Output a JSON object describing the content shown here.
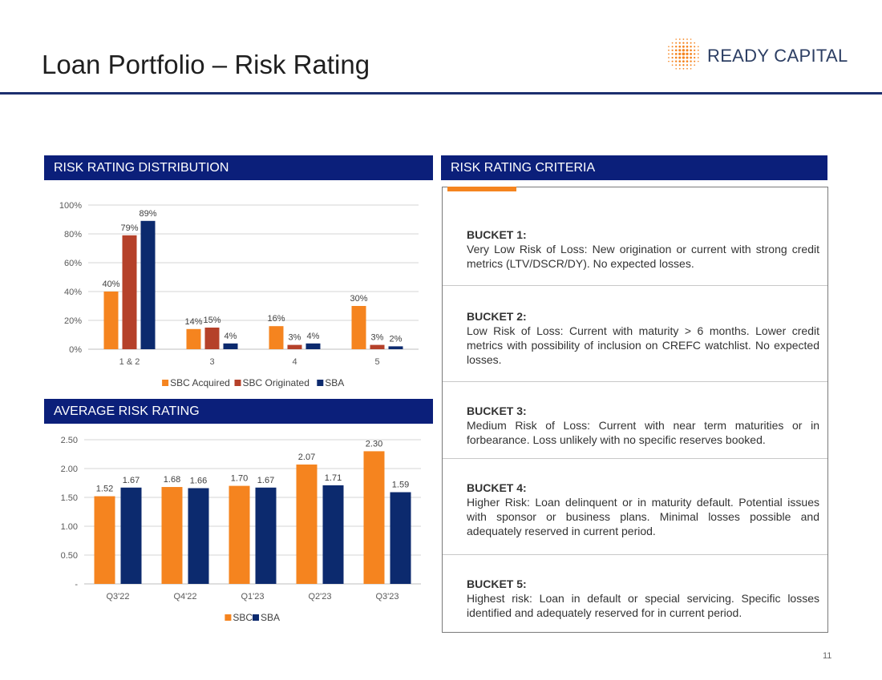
{
  "page": {
    "title": "Loan Portfolio – Risk Rating",
    "logo_text": "READY CAPITAL",
    "page_number": "11",
    "colors": {
      "navy": "#0b1f7a",
      "orange": "#f5841f",
      "rust": "#b5412a",
      "sba": "#0c2a6e"
    }
  },
  "sections": {
    "distribution_header": "RISK RATING DISTRIBUTION",
    "average_header": "AVERAGE RISK RATING",
    "criteria_header": "RISK RATING CRITERIA"
  },
  "criteria": [
    {
      "title": "BUCKET 1:",
      "description": "Very Low Risk of Loss: New origination or current with strong credit metrics (LTV/DSCR/DY). No expected losses."
    },
    {
      "title": "BUCKET 2:",
      "description": "Low Risk of Loss: Current with maturity > 6 months. Lower credit metrics with possibility of inclusion on CREFC watchlist. No expected losses."
    },
    {
      "title": "BUCKET 3:",
      "description": "Medium Risk of Loss: Current with near term maturities or in forbearance. Loss unlikely with no specific reserves booked."
    },
    {
      "title": "BUCKET 4:",
      "description": "Higher Risk: Loan delinquent or in maturity default. Potential issues with sponsor or business plans. Minimal losses possible and adequately reserved in current period."
    },
    {
      "title": "BUCKET 5:",
      "description": "Highest risk: Loan in default or special servicing. Specific losses identified and adequately reserved for in current period."
    }
  ],
  "chart_data": [
    {
      "type": "bar",
      "title": "RISK RATING DISTRIBUTION",
      "categories": [
        "1 & 2",
        "3",
        "4",
        "5"
      ],
      "series": [
        {
          "name": "SBC Acquired",
          "color": "#f5841f",
          "values": [
            40,
            14,
            16,
            30
          ],
          "labels": [
            "40%",
            "14%",
            "16%",
            "30%"
          ]
        },
        {
          "name": "SBC Originated",
          "color": "#b5412a",
          "values": [
            79,
            15,
            3,
            3
          ],
          "labels": [
            "79%",
            "15%",
            "3%",
            "3%"
          ]
        },
        {
          "name": "SBA",
          "color": "#0c2a6e",
          "values": [
            89,
            4,
            4,
            2
          ],
          "labels": [
            "89%",
            "4%",
            "4%",
            "2%"
          ]
        }
      ],
      "ylim": [
        0,
        100
      ],
      "yticks": [
        0,
        20,
        40,
        60,
        80,
        100
      ],
      "ytick_labels": [
        "0%",
        "20%",
        "40%",
        "60%",
        "80%",
        "100%"
      ],
      "grid": true,
      "legend": "bottom"
    },
    {
      "type": "bar",
      "title": "AVERAGE RISK RATING",
      "categories": [
        "Q3'22",
        "Q4'22",
        "Q1'23",
        "Q2'23",
        "Q3'23"
      ],
      "series": [
        {
          "name": "SBC",
          "color": "#f5841f",
          "values": [
            1.52,
            1.68,
            1.7,
            2.07,
            2.3
          ],
          "labels": [
            "1.52",
            "1.68",
            "1.70",
            "2.07",
            "2.30"
          ]
        },
        {
          "name": "SBA",
          "color": "#0c2a6e",
          "values": [
            1.67,
            1.66,
            1.67,
            1.71,
            1.59
          ],
          "labels": [
            "1.67",
            "1.66",
            "1.67",
            "1.71",
            "1.59"
          ]
        }
      ],
      "ylim": [
        0,
        2.5
      ],
      "yticks": [
        0,
        0.5,
        1.0,
        1.5,
        2.0,
        2.5
      ],
      "ytick_labels": [
        "-",
        "0.50",
        "1.00",
        "1.50",
        "2.00",
        "2.50"
      ],
      "grid": true,
      "legend": "bottom"
    }
  ]
}
